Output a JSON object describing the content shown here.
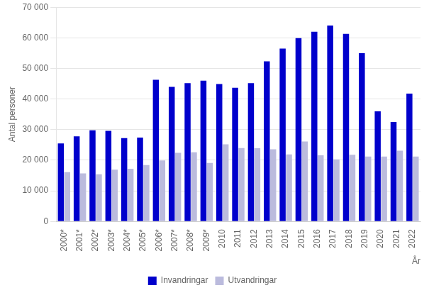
{
  "chart_data": {
    "type": "bar",
    "categories": [
      "2000*",
      "2001*",
      "2002*",
      "2003*",
      "2004*",
      "2005*",
      "2006*",
      "2007*",
      "2008*",
      "2009*",
      "2010",
      "2011",
      "2012",
      "2013",
      "2014",
      "2015",
      "2016",
      "2017",
      "2018",
      "2019",
      "2020",
      "2021",
      "2022"
    ],
    "series": [
      {
        "name": "Invandringar",
        "color": "#0000CC",
        "values": [
          25500,
          27800,
          29800,
          29600,
          27200,
          27400,
          46300,
          44000,
          45200,
          46000,
          44900,
          43700,
          45200,
          52300,
          56500,
          59900,
          62000,
          64000,
          61300,
          55000,
          36000,
          32500,
          41800
        ]
      },
      {
        "name": "Utvandringar",
        "color": "#BBBBDD",
        "values": [
          16100,
          15700,
          15400,
          16900,
          17200,
          18400,
          19900,
          22400,
          22600,
          19100,
          25200,
          24000,
          23900,
          23600,
          21900,
          26100,
          21600,
          20300,
          21800,
          21200,
          21200,
          23100,
          21200
        ]
      }
    ],
    "y_label": "Antal personer",
    "x_label": "År",
    "ylim": [
      0,
      70000
    ],
    "yticks": [
      0,
      {
        "value": 10000,
        "label": "10 000"
      },
      {
        "value": 20000,
        "label": "20 000"
      },
      {
        "value": 30000,
        "label": "30 000"
      },
      {
        "value": 40000,
        "label": "40 000"
      },
      {
        "value": 50000,
        "label": "50 000"
      },
      {
        "value": 60000,
        "label": "60 000"
      },
      {
        "value": 70000,
        "label": "70 000"
      }
    ],
    "grid": true,
    "legend": "bottom"
  }
}
